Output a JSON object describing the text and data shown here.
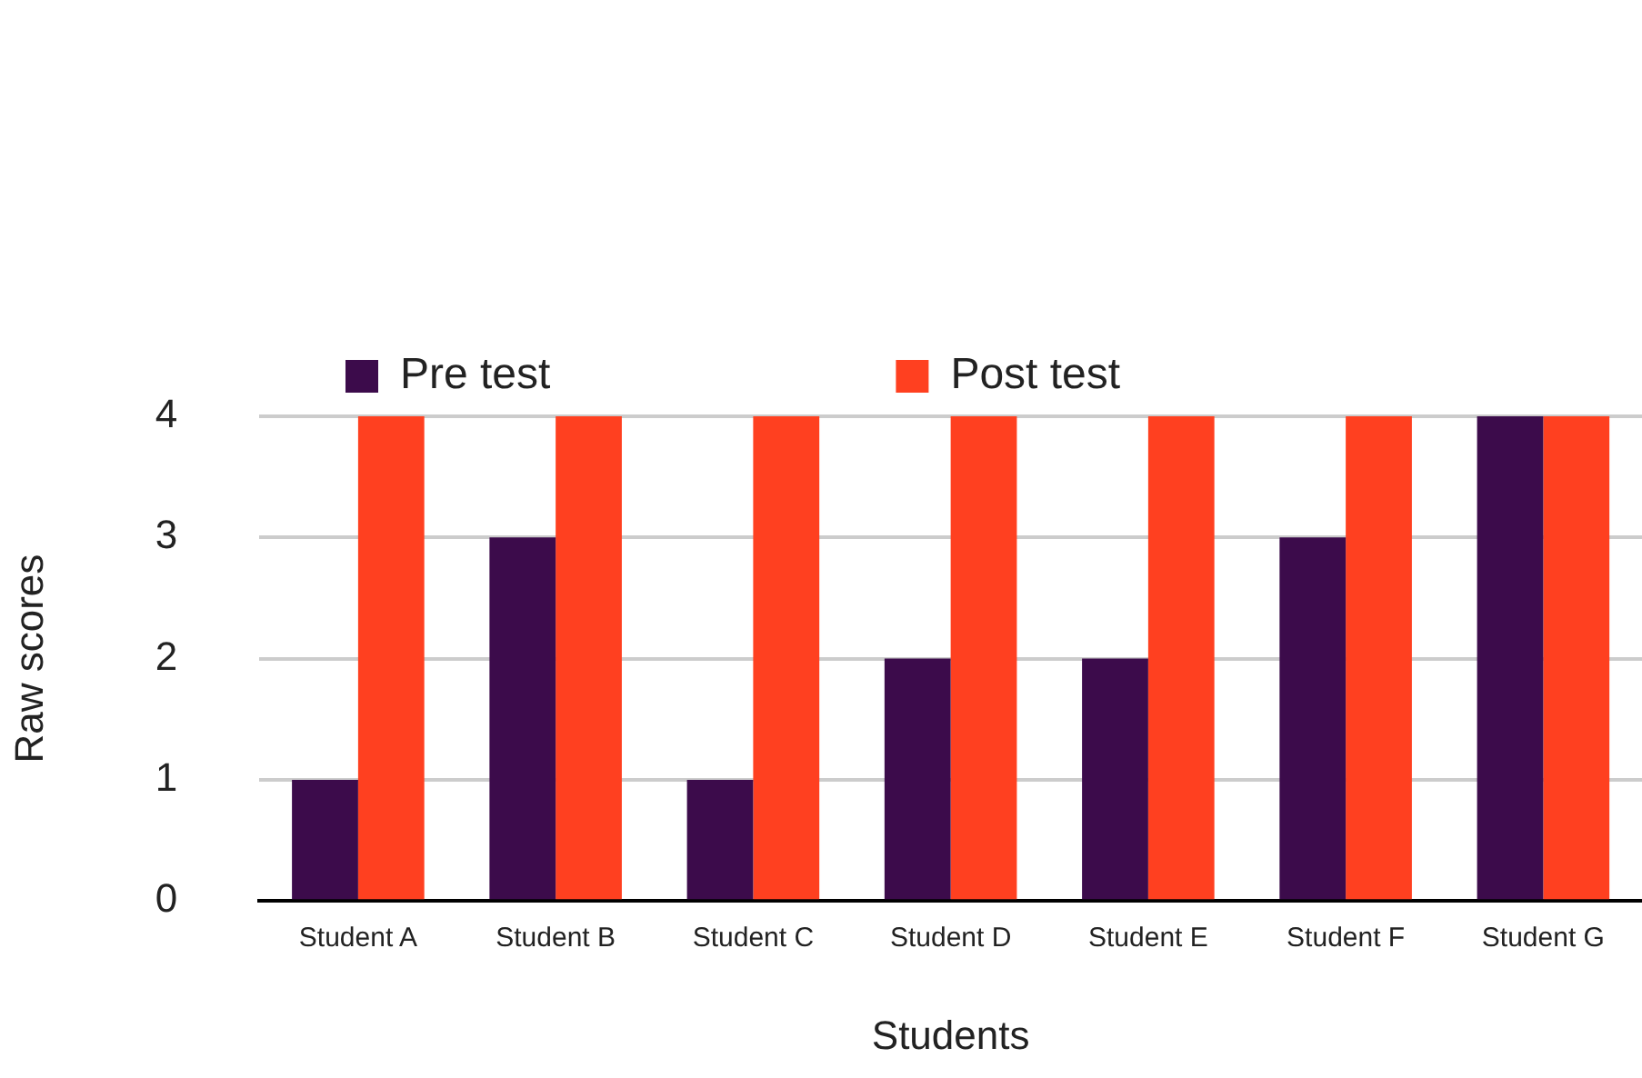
{
  "chart_data": {
    "type": "bar",
    "xlabel": "Students",
    "ylabel": "Raw scores",
    "categories": [
      "Student A",
      "Student B",
      "Student C",
      "Student D",
      "Student E",
      "Student F",
      "Student G"
    ],
    "series": [
      {
        "name": "Pre test",
        "color": "#3c0b4b",
        "values": [
          1,
          3,
          1,
          2,
          2,
          3,
          4
        ]
      },
      {
        "name": "Post test",
        "color": "#ff4020",
        "values": [
          4,
          4,
          4,
          4,
          4,
          4,
          4
        ]
      }
    ],
    "ylim": [
      0,
      4
    ],
    "yticks": [
      0,
      1,
      2,
      3,
      4
    ],
    "grid": "y",
    "legend": "top"
  }
}
